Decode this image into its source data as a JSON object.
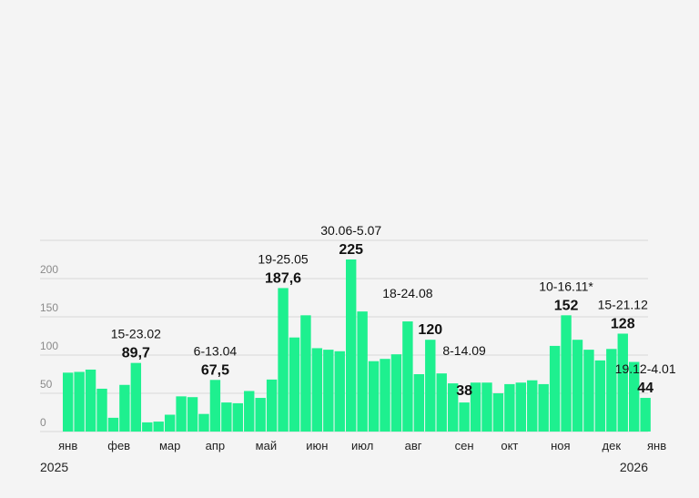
{
  "colors": {
    "bar": "#1ef08f",
    "background": "#f4f4f4",
    "grid": "#d9d9d9"
  },
  "chart_data": {
    "type": "bar",
    "title": "",
    "xlabel": "",
    "ylabel": "",
    "ylim": [
      0,
      250
    ],
    "yticks": [
      {
        "value": 0,
        "label": "0"
      },
      {
        "value": 50,
        "label": "50"
      },
      {
        "value": 100,
        "label": "100"
      },
      {
        "value": 150,
        "label": "150"
      },
      {
        "value": 200,
        "label": "200"
      }
    ],
    "values": [
      77,
      78,
      81,
      56,
      18,
      61,
      89.7,
      12,
      13,
      22,
      46,
      45,
      23,
      67.5,
      38,
      37,
      53,
      44,
      68,
      187.6,
      123,
      152,
      109,
      107,
      105,
      225,
      157,
      92,
      95,
      101,
      144,
      75,
      120,
      76,
      63,
      38,
      64,
      64,
      50,
      62,
      64,
      67,
      62,
      112,
      152,
      120,
      107,
      93,
      108,
      128,
      91,
      44
    ],
    "month_labels": [
      {
        "label": "янв",
        "bar": 0
      },
      {
        "label": "фев",
        "bar": 4.5
      },
      {
        "label": "мар",
        "bar": 9
      },
      {
        "label": "апр",
        "bar": 13
      },
      {
        "label": "май",
        "bar": 17.5
      },
      {
        "label": "июн",
        "bar": 22
      },
      {
        "label": "июл",
        "bar": 26
      },
      {
        "label": "авг",
        "bar": 30.5
      },
      {
        "label": "сен",
        "bar": 35
      },
      {
        "label": "окт",
        "bar": 39
      },
      {
        "label": "ноя",
        "bar": 43.5
      },
      {
        "label": "дек",
        "bar": 48
      },
      {
        "label": "янв",
        "bar": 52
      }
    ],
    "year_start": "2025",
    "year_end": "2026",
    "annotations": [
      {
        "bar": 6,
        "date": "15-23.02",
        "value": "89,7"
      },
      {
        "bar": 13,
        "date": "6-13.04",
        "value": "67,5"
      },
      {
        "bar": 19,
        "date": "19-25.05",
        "value": "187,6"
      },
      {
        "bar": 25,
        "date": "30.06-5.07",
        "value": "225"
      },
      {
        "bar": 30,
        "date": "18-24.08",
        "value": "120",
        "valueBar": 32
      },
      {
        "bar": 35,
        "date": "8-14.09",
        "value": "38",
        "inside": true
      },
      {
        "bar": 44,
        "date": "10-16.11*",
        "value": "152"
      },
      {
        "bar": 49,
        "date": "15-21.12",
        "value": "128"
      },
      {
        "bar": 51,
        "date": "19.12-4.01",
        "value": "44"
      }
    ]
  }
}
